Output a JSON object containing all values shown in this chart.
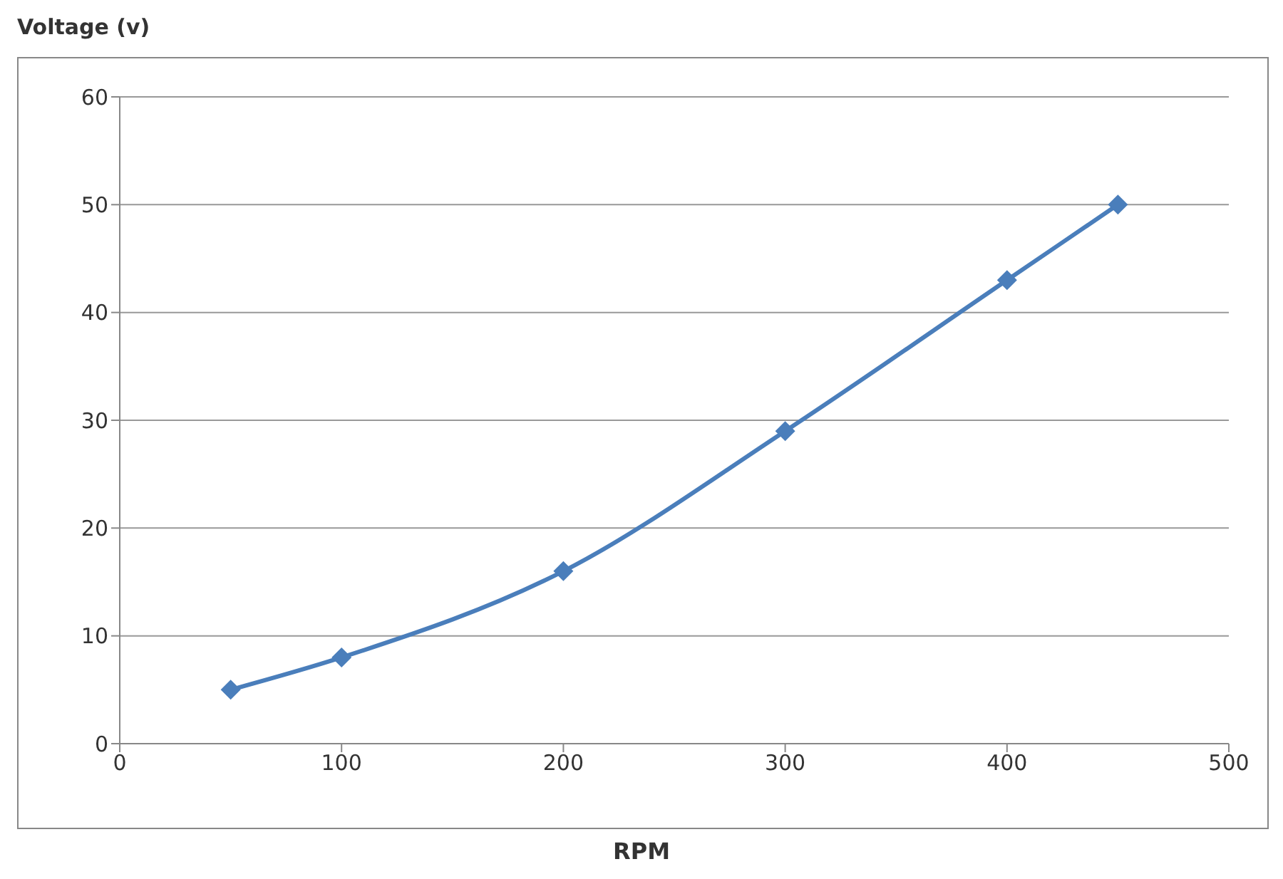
{
  "chart_data": {
    "type": "line",
    "xlabel": "RPM",
    "ylabel": "Voltage (v)",
    "x": [
      50,
      100,
      200,
      300,
      400,
      450
    ],
    "series": [
      {
        "color": "#4a7ebb",
        "values": [
          5,
          8,
          16,
          29,
          43,
          50
        ]
      }
    ],
    "xlim": [
      0,
      500
    ],
    "xticks": [
      0,
      100,
      200,
      300,
      400,
      500
    ],
    "ylim": [
      0,
      60
    ],
    "yticks": [
      0,
      10,
      20,
      30,
      40,
      50,
      60
    ],
    "grid": "y",
    "legend": false,
    "marker": "diamond",
    "line_style": "solid"
  }
}
